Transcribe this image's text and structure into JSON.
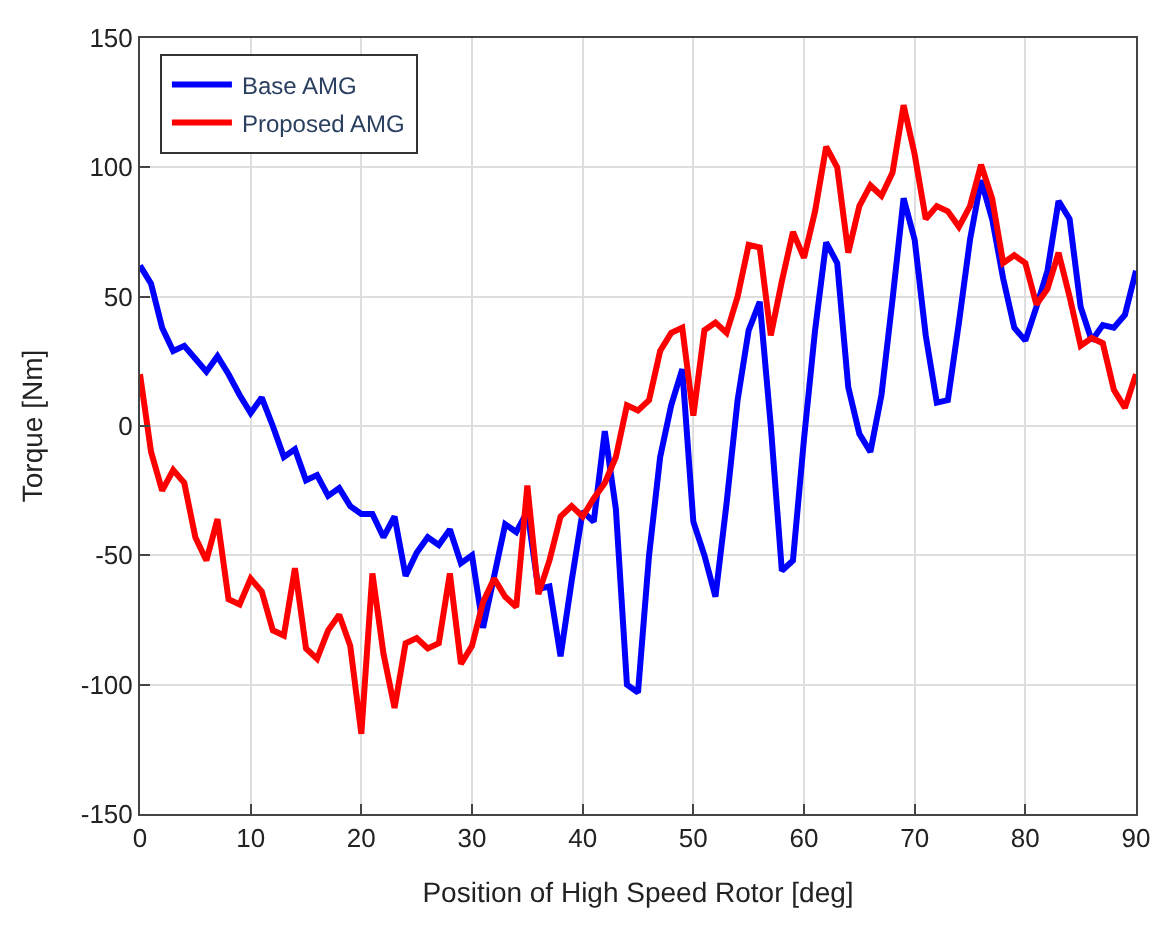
{
  "chart_data": {
    "type": "line",
    "xlabel": "Position of High Speed Rotor [deg]",
    "ylabel": "Torque [Nm]",
    "x": [
      0,
      1,
      2,
      3,
      4,
      5,
      6,
      7,
      8,
      9,
      10,
      11,
      12,
      13,
      14,
      15,
      16,
      17,
      18,
      19,
      20,
      21,
      22,
      23,
      24,
      25,
      26,
      27,
      28,
      29,
      30,
      31,
      32,
      33,
      34,
      35,
      36,
      37,
      38,
      39,
      40,
      41,
      42,
      43,
      44,
      45,
      46,
      47,
      48,
      49,
      50,
      51,
      52,
      53,
      54,
      55,
      56,
      57,
      58,
      59,
      60,
      61,
      62,
      63,
      64,
      65,
      66,
      67,
      68,
      69,
      70,
      71,
      72,
      73,
      74,
      75,
      76,
      77,
      78,
      79,
      80,
      81,
      82,
      83,
      84,
      85,
      86,
      87,
      88,
      89,
      90
    ],
    "series": [
      {
        "name": "Base AMG",
        "color": "#0000ff",
        "values": [
          62,
          55,
          38,
          29,
          31,
          26,
          21,
          27,
          20,
          12,
          5,
          11,
          0,
          -12,
          -9,
          -21,
          -19,
          -27,
          -24,
          -31,
          -34,
          -34,
          -43,
          -35,
          -58,
          -49,
          -43,
          -46,
          -40,
          -53,
          -50,
          -78,
          -58,
          -38,
          -41,
          -33,
          -63,
          -62,
          -89,
          -60,
          -33,
          -37,
          -2,
          -32,
          -100,
          -103,
          -50,
          -12,
          8,
          22,
          -37,
          -50,
          -66,
          -30,
          10,
          37,
          48,
          0,
          -56,
          -52,
          -5,
          37,
          71,
          63,
          15,
          -3,
          -10,
          12,
          49,
          88,
          72,
          35,
          9,
          10,
          40,
          72,
          95,
          80,
          57,
          38,
          33,
          46,
          60,
          87,
          80,
          46,
          33,
          39,
          38,
          43,
          60
        ]
      },
      {
        "name": "Proposed AMG",
        "color": "#ff0000",
        "values": [
          20,
          -10,
          -25,
          -17,
          -22,
          -43,
          -52,
          -36,
          -67,
          -69,
          -59,
          -64,
          -79,
          -81,
          -55,
          -86,
          -90,
          -79,
          -73,
          -85,
          -119,
          -57,
          -88,
          -109,
          -84,
          -82,
          -86,
          -84,
          -57,
          -92,
          -85,
          -68,
          -59,
          -66,
          -70,
          -23,
          -65,
          -52,
          -35,
          -31,
          -35,
          -28,
          -22,
          -12,
          8,
          6,
          10,
          29,
          36,
          38,
          4,
          37,
          40,
          36,
          50,
          70,
          69,
          35,
          56,
          75,
          65,
          83,
          108,
          100,
          67,
          85,
          93,
          89,
          98,
          124,
          105,
          80,
          85,
          83,
          77,
          85,
          101,
          88,
          63,
          66,
          63,
          47,
          53,
          67,
          50,
          31,
          34,
          32,
          14,
          7,
          20
        ]
      }
    ],
    "xlim": [
      0,
      90
    ],
    "xticks": [
      0,
      10,
      20,
      30,
      40,
      50,
      60,
      70,
      80,
      90
    ],
    "ylim": [
      -150,
      150
    ],
    "yticks": [
      -150,
      -100,
      -50,
      0,
      50,
      100,
      150
    ],
    "grid": true,
    "legend": "top left"
  }
}
